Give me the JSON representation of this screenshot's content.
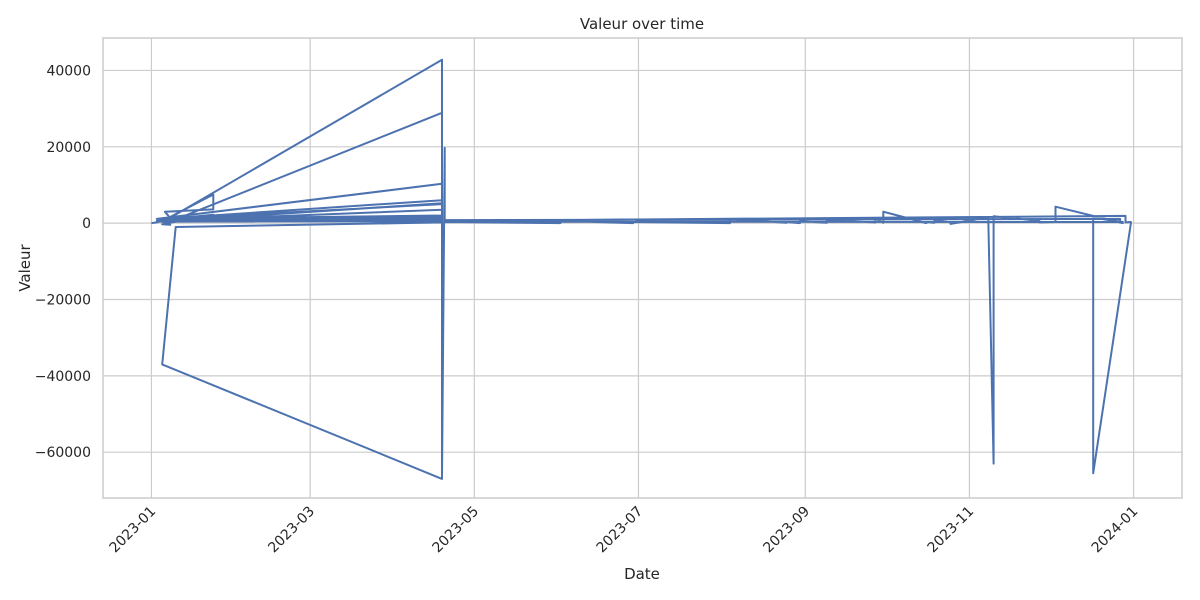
{
  "chart_data": {
    "type": "line",
    "title": "Valeur over time",
    "xlabel": "Date",
    "ylabel": "Valeur",
    "xlim": [
      "2022-12-14",
      "2024-01-19"
    ],
    "ylim": [
      -72000,
      48500
    ],
    "x_ticks": [
      "2023-01",
      "2023-03",
      "2023-05",
      "2023-07",
      "2023-09",
      "2023-11",
      "2024-01"
    ],
    "y_ticks": [
      -60000,
      -40000,
      -20000,
      0,
      20000,
      40000
    ],
    "grid": true,
    "line_color": "#4c72b0",
    "series": [
      {
        "x": [
          "2023-01-01",
          "2023-01-03",
          "2023-01-05",
          "2023-01-08",
          "2023-01-06",
          "2023-01-24",
          "2023-01-24",
          "2023-01-06",
          "2023-01-09",
          "2023-01-24",
          "2023-01-05",
          "2023-01-08",
          "2023-01-05",
          "2023-01-07",
          "2023-04-19",
          "2023-04-19",
          "2023-01-05",
          "2023-01-10",
          "2023-04-19",
          "2023-04-19",
          "2023-01-03",
          "2023-01-08",
          "2023-04-19",
          "2023-04-19",
          "2023-01-03",
          "2023-04-19",
          "2023-04-19",
          "2023-01-04",
          "2023-04-19",
          "2023-04-19",
          "2023-01-08",
          "2023-04-19",
          "2023-04-19",
          "2023-01-03",
          "2023-04-19",
          "2023-04-19",
          "2023-01-08",
          "2023-04-19",
          "2023-04-19",
          "2023-01-08",
          "2023-04-19",
          "2023-04-19",
          "2023-04-20",
          "2023-04-20",
          "2023-12-27",
          "2023-12-27",
          "2023-04-20",
          "2023-04-20",
          "2023-12-29",
          "2023-12-29",
          "2023-12-31",
          "2023-12-31",
          "2023-12-17",
          "2023-12-17",
          "2023-12-28",
          "2023-12-28",
          "2023-12-03",
          "2023-12-03",
          "2023-11-27",
          "2023-11-27",
          "2023-11-10",
          "2023-11-10",
          "2023-11-08",
          "2023-11-08",
          "2023-10-25",
          "2023-10-25",
          "2023-10-19",
          "2023-10-19",
          "2023-10-16",
          "2023-10-16",
          "2023-09-30",
          "2023-09-30",
          "2023-09-27",
          "2023-09-27",
          "2023-09-09",
          "2023-09-09",
          "2023-08-30",
          "2023-08-30",
          "2023-08-25",
          "2023-08-25",
          "2023-08-04",
          "2023-08-04",
          "2023-06-29",
          "2023-06-29",
          "2023-06-02",
          "2023-06-02",
          "2023-04-20",
          "2023-04-20"
        ],
        "y": [
          0,
          200,
          700,
          1300,
          3000,
          3600,
          7500,
          900,
          1200,
          2200,
          -300,
          -400,
          400,
          1000,
          42800,
          -67000,
          -37000,
          -1000,
          200,
          1500,
          400,
          900,
          300,
          1800,
          600,
          3500,
          800,
          1000,
          5000,
          1200,
          1300,
          6000,
          2000,
          1100,
          10300,
          600,
          400,
          28900,
          800,
          600,
          5200,
          -66500,
          19700,
          800,
          1100,
          300,
          400,
          600,
          1900,
          200,
          300,
          0,
          -65500,
          1400,
          300,
          0,
          4300,
          300,
          200,
          600,
          1800,
          -63000,
          800,
          1500,
          -200,
          200,
          800,
          100,
          300,
          0,
          3000,
          100,
          1200,
          200,
          800,
          100,
          500,
          0,
          300,
          100,
          1000,
          0,
          300,
          0,
          600,
          0,
          300,
          0
        ]
      }
    ]
  }
}
